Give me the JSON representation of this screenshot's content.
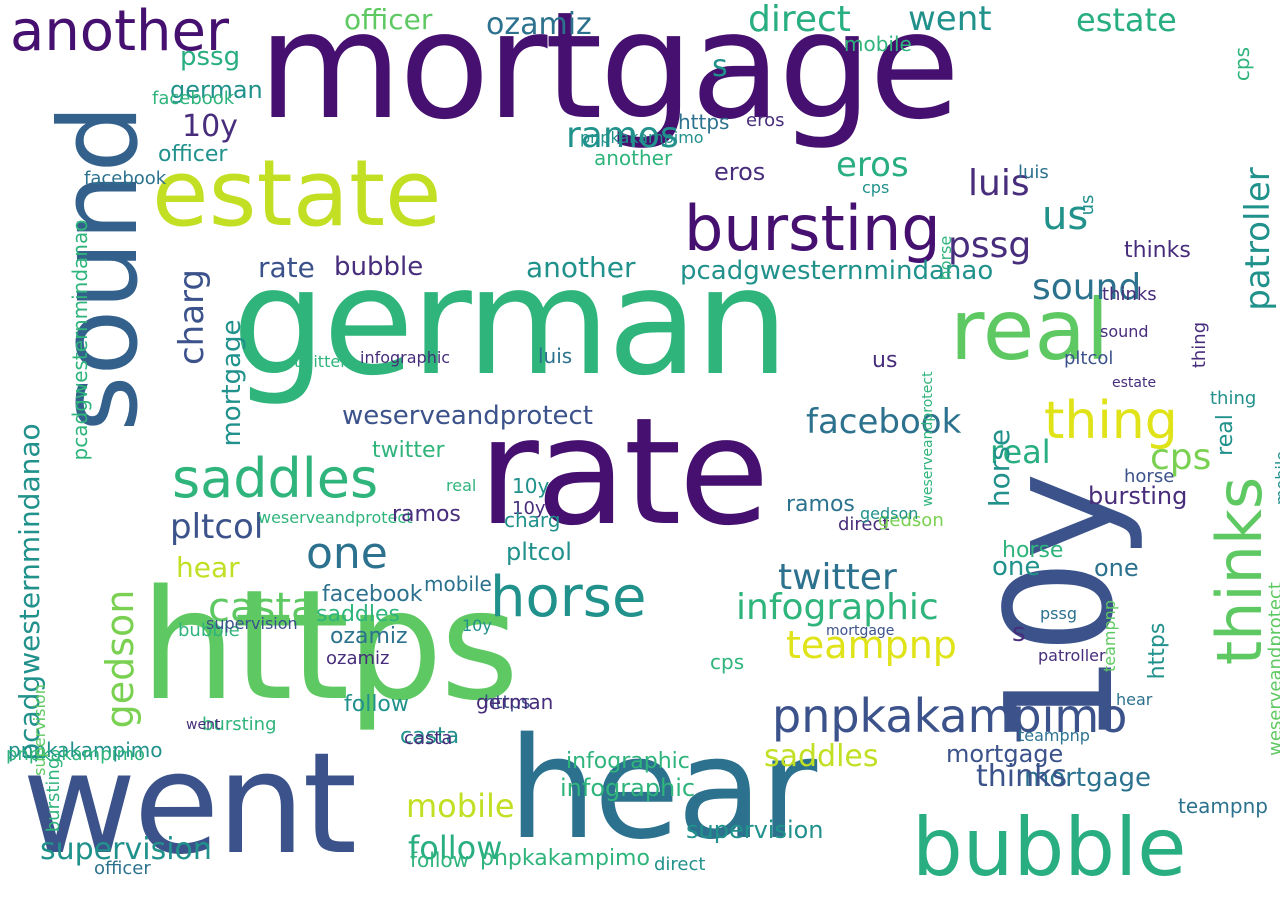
{
  "palette": {
    "deep_purple": "#45106f",
    "indigo": "#472d7b",
    "slate_blue": "#3b528b",
    "steel_blue": "#33618c",
    "teal_blue": "#2c728e",
    "teal": "#21918c",
    "green_teal": "#28ae80",
    "sea_green": "#2fb47c",
    "green": "#5ec962",
    "lime_green": "#7ad151",
    "yellow_green": "#c2df23",
    "yellow": "#dfe318"
  },
  "words": [
    {
      "id": "mortgage-big",
      "text": "mortgage",
      "color": "#45106f",
      "orient": "h"
    },
    {
      "id": "german-big",
      "text": "german",
      "color": "#2fb47c",
      "orient": "h"
    },
    {
      "id": "rate-big",
      "text": "rate",
      "color": "#45106f",
      "orient": "h"
    },
    {
      "id": "https-big",
      "text": "https",
      "color": "#5ec962",
      "orient": "h"
    },
    {
      "id": "went-big",
      "text": "went",
      "color": "#3b528b",
      "orient": "h"
    },
    {
      "id": "hear-big",
      "text": "hear",
      "color": "#2c728e",
      "orient": "h"
    },
    {
      "id": "sound-big",
      "text": "sound",
      "color": "#33618c",
      "orient": "v"
    },
    {
      "id": "10y-big",
      "text": "10y",
      "color": "#3b528b",
      "orient": "v"
    },
    {
      "id": "estate-big",
      "text": "estate",
      "color": "#c2df23",
      "orient": "h"
    },
    {
      "id": "real-big",
      "text": "real",
      "color": "#5ec962",
      "orient": "h"
    },
    {
      "id": "bubble-big",
      "text": "bubble",
      "color": "#28ae80",
      "orient": "h"
    },
    {
      "id": "thinks-big",
      "text": "thinks",
      "color": "#5ec962",
      "orient": "v"
    },
    {
      "id": "bursting-big",
      "text": "bursting",
      "color": "#45106f",
      "orient": "h"
    },
    {
      "id": "another-big",
      "text": "another",
      "color": "#45106f",
      "orient": "h"
    },
    {
      "id": "saddles-big",
      "text": "saddles",
      "color": "#2fb47c",
      "orient": "h"
    },
    {
      "id": "horse-big",
      "text": "horse",
      "color": "#21918c",
      "orient": "h"
    },
    {
      "id": "pnpkakampimo-big",
      "text": "pnpkakampimo",
      "color": "#3b528b",
      "orient": "h"
    },
    {
      "id": "thing-big",
      "text": "thing",
      "color": "#dfe318",
      "orient": "h"
    },
    {
      "id": "facebook-big",
      "text": "facebook",
      "color": "#2c728e",
      "orient": "h"
    },
    {
      "id": "infographic-big",
      "text": "infographic",
      "color": "#2fb47c",
      "orient": "h"
    },
    {
      "id": "twitter-big",
      "text": "twitter",
      "color": "#2c728e",
      "orient": "h"
    },
    {
      "id": "weserveandprotect-big",
      "text": "weserveandprotect",
      "color": "#3b528b",
      "orient": "h"
    },
    {
      "id": "pcadgwesternmindanao-big",
      "text": "pcadgwesternmindanao",
      "color": "#21918c",
      "orient": "v"
    },
    {
      "id": "casta-big",
      "text": "casta",
      "color": "#5ec962",
      "orient": "h"
    },
    {
      "id": "one-big",
      "text": "one",
      "color": "#2c728e",
      "orient": "h"
    },
    {
      "id": "ozamiz-big",
      "text": "ozamiz",
      "color": "#2c728e",
      "orient": "h"
    },
    {
      "id": "officer-big",
      "text": "officer",
      "color": "#5ec962",
      "orient": "h"
    },
    {
      "id": "direct-big",
      "text": "direct",
      "color": "#28ae80",
      "orient": "h"
    },
    {
      "id": "went-2",
      "text": "went",
      "color": "#21918c",
      "orient": "h"
    },
    {
      "id": "estate-2",
      "text": "estate",
      "color": "#28ae80",
      "orient": "h"
    },
    {
      "id": "eros-big",
      "text": "eros",
      "color": "#28ae80",
      "orient": "h"
    },
    {
      "id": "luis-big",
      "text": "luis",
      "color": "#472d7b",
      "orient": "h"
    },
    {
      "id": "pssg-big",
      "text": "pssg",
      "color": "#472d7b",
      "orient": "h"
    },
    {
      "id": "ramos-big",
      "text": "ramos",
      "color": "#21918c",
      "orient": "h"
    },
    {
      "id": "patroller-big",
      "text": "patroller",
      "color": "#21918c",
      "orient": "v"
    },
    {
      "id": "us-big",
      "text": "us",
      "color": "#21918c",
      "orient": "h"
    },
    {
      "id": "teampnp-big",
      "text": "teampnp",
      "color": "#dfe318",
      "orient": "h"
    },
    {
      "id": "supervision-big",
      "text": "supervision",
      "color": "#21918c",
      "orient": "h"
    },
    {
      "id": "follow-big",
      "text": "follow",
      "color": "#28ae80",
      "orient": "h"
    },
    {
      "id": "mobile-big",
      "text": "mobile",
      "color": "#c2df23",
      "orient": "h"
    },
    {
      "id": "cps-big",
      "text": "cps",
      "color": "#7ad151",
      "orient": "h"
    },
    {
      "id": "gedson-big",
      "text": "gedson",
      "color": "#7ad151",
      "orient": "v"
    },
    {
      "id": "pltcol-big",
      "text": "pltcol",
      "color": "#3b528b",
      "orient": "h"
    },
    {
      "id": "charg-big",
      "text": "charg",
      "color": "#3b528b",
      "orient": "v"
    },
    {
      "id": "bubble-2",
      "text": "bubble",
      "color": "#472d7b",
      "orient": "h"
    },
    {
      "id": "rate-2",
      "text": "rate",
      "color": "#3b528b",
      "orient": "h"
    },
    {
      "id": "another-2",
      "text": "another",
      "color": "#21918c",
      "orient": "h"
    },
    {
      "id": "pcadgwesternmindanao-2",
      "text": "pcadgwesternmindanao",
      "color": "#21918c",
      "orient": "h"
    },
    {
      "id": "sound-2",
      "text": "sound",
      "color": "#2c728e",
      "orient": "h"
    },
    {
      "id": "thinks-2",
      "text": "thinks",
      "color": "#472d7b",
      "orient": "h"
    },
    {
      "id": "mortgage-2",
      "text": "mortgage",
      "color": "#2c728e",
      "orient": "h"
    },
    {
      "id": "mortgage-3",
      "text": "mortgage",
      "color": "#21918c",
      "orient": "v"
    },
    {
      "id": "pnpkakampimo-2",
      "text": "pnpkakampimo",
      "color": "#21918c",
      "orient": "h"
    },
    {
      "id": "ramos-2",
      "text": "ramos",
      "color": "#2c728e",
      "orient": "h"
    },
    {
      "id": "officer-2",
      "text": "officer",
      "color": "#21918c",
      "orient": "h"
    },
    {
      "id": "10y-2",
      "text": "10y",
      "color": "#472d7b",
      "orient": "h"
    },
    {
      "id": "german-2",
      "text": "german",
      "color": "#21918c",
      "orient": "h"
    },
    {
      "id": "pssg-2",
      "text": "pssg",
      "color": "#28ae80",
      "orient": "h"
    },
    {
      "id": "eros-2",
      "text": "eros",
      "color": "#472d7b",
      "orient": "h"
    },
    {
      "id": "infographic-2",
      "text": "infographic",
      "color": "#2fb47c",
      "orient": "h"
    },
    {
      "id": "bursting-2",
      "text": "bursting",
      "color": "#472d7b",
      "orient": "h"
    },
    {
      "id": "real-2",
      "text": "real",
      "color": "#28ae80",
      "orient": "h"
    },
    {
      "id": "twitter-2",
      "text": "twitter",
      "color": "#2fb47c",
      "orient": "h"
    },
    {
      "id": "pltcol-2",
      "text": "pltcol",
      "color": "#21918c",
      "orient": "h"
    },
    {
      "id": "hear-2",
      "text": "hear",
      "color": "#c2df23",
      "orient": "h"
    },
    {
      "id": "casta-2",
      "text": "casta",
      "color": "#21918c",
      "orient": "h"
    },
    {
      "id": "mobile-2",
      "text": "mobile",
      "color": "#2c728e",
      "orient": "h"
    },
    {
      "id": "10y-3",
      "text": "10y",
      "color": "#21918c",
      "orient": "h"
    },
    {
      "id": "saddles-2",
      "text": "saddles",
      "color": "#c2df23",
      "orient": "h"
    },
    {
      "id": "infographic-3",
      "text": "infographic",
      "color": "#2fb47c",
      "orient": "h"
    },
    {
      "id": "thinks-3",
      "text": "thinks",
      "color": "#3b528b",
      "orient": "h"
    },
    {
      "id": "supervision-2",
      "text": "supervision",
      "color": "#21918c",
      "orient": "h"
    },
    {
      "id": "follow-2",
      "text": "follow",
      "color": "#2fb47c",
      "orient": "h"
    },
    {
      "id": "pnpkakampimo-3",
      "text": "pnpkakampimo",
      "color": "#2fb47c",
      "orient": "h"
    },
    {
      "id": "mortgage-4",
      "text": "mortgage",
      "color": "#3b528b",
      "orient": "h"
    },
    {
      "id": "teampnp-2",
      "text": "teampnp",
      "color": "#2c728e",
      "orient": "h"
    },
    {
      "id": "one-2",
      "text": "one",
      "color": "#21918c",
      "orient": "h"
    },
    {
      "id": "direct-2",
      "text": "direct",
      "color": "#472d7b",
      "orient": "h"
    },
    {
      "id": "ozamiz-2",
      "text": "ozamiz",
      "color": "#2c728e",
      "orient": "h"
    },
    {
      "id": "https-2",
      "text": "https",
      "color": "#21918c",
      "orient": "v"
    },
    {
      "id": "pnpkakampimo-4",
      "text": "pnpkakampimo",
      "color": "#2fb47c",
      "orient": "h"
    },
    {
      "id": "gedson-2",
      "text": "gedson",
      "color": "#7ad151",
      "orient": "h"
    },
    {
      "id": "horse-2",
      "text": "horse",
      "color": "#21918c",
      "orient": "v"
    },
    {
      "id": "weserveandprotect-2",
      "text": "weserveandprotect",
      "color": "#2fb47c",
      "orient": "h"
    },
    {
      "id": "bursting-3",
      "text": "bursting",
      "color": "#2fb47c",
      "orient": "h"
    },
    {
      "id": "cps-2",
      "text": "cps",
      "color": "#2fb47c",
      "orient": "h"
    },
    {
      "id": "luis-2",
      "text": "luis",
      "color": "#2c728e",
      "orient": "h"
    },
    {
      "id": "one-3",
      "text": "one",
      "color": "#2c728e",
      "orient": "h"
    },
    {
      "id": "facebook-2",
      "text": "facebook",
      "color": "#2c728e",
      "orient": "h"
    },
    {
      "id": "10y-4",
      "text": "10y",
      "color": "#472d7b",
      "orient": "h"
    },
    {
      "id": "https-3",
      "text": "https",
      "color": "#3b528b",
      "orient": "h"
    },
    {
      "id": "pnpkakampimo-5",
      "text": "pnpkakampimo",
      "color": "#21918c",
      "orient": "h"
    },
    {
      "id": "pcadgwesternmindanao-3",
      "text": "pcadgwesternmindanao",
      "color": "#2fb47c",
      "orient": "v"
    },
    {
      "id": "weserveandprotect-3",
      "text": "weserveandprotect",
      "color": "#5ec962",
      "orient": "v"
    },
    {
      "id": "facebook-3",
      "text": "facebook",
      "color": "#2c728e",
      "orient": "h"
    },
    {
      "id": "facebook-4",
      "text": "facebook",
      "color": "#2fb47c",
      "orient": "h"
    },
    {
      "id": "german-3",
      "text": "german",
      "color": "#472d7b",
      "orient": "h"
    },
    {
      "id": "ozamiz-3",
      "text": "ozamiz",
      "color": "#472d7b",
      "orient": "h"
    },
    {
      "id": "mortgage-5",
      "text": "mortgage",
      "color": "#3b528b",
      "orient": "h"
    },
    {
      "id": "s-1",
      "text": "s",
      "color": "#21918c",
      "orient": "h"
    },
    {
      "id": "s-2",
      "text": "s",
      "color": "#472d7b",
      "orient": "h"
    },
    {
      "id": "mobile-3",
      "text": "mobile",
      "color": "#2fb47c",
      "orient": "h"
    },
    {
      "id": "follow-3",
      "text": "follow",
      "color": "#21918c",
      "orient": "h"
    },
    {
      "id": "officer-3",
      "text": "officer",
      "color": "#2c728e",
      "orient": "h"
    },
    {
      "id": "direct-3",
      "text": "direct",
      "color": "#21918c",
      "orient": "h"
    },
    {
      "id": "https-4",
      "text": "https",
      "color": "#2c728e",
      "orient": "h"
    },
    {
      "id": "horse-3",
      "text": "horse",
      "color": "#2fb47c",
      "orient": "h"
    },
    {
      "id": "horse-4",
      "text": "horse",
      "color": "#3b528b",
      "orient": "h"
    },
    {
      "id": "saddles-3",
      "text": "saddles",
      "color": "#2fb47c",
      "orient": "h"
    },
    {
      "id": "ramos-3",
      "text": "ramos",
      "color": "#472d7b",
      "orient": "h"
    },
    {
      "id": "thing-2",
      "text": "thing",
      "color": "#21918c",
      "orient": "h"
    },
    {
      "id": "casta-3",
      "text": "casta",
      "color": "#472d7b",
      "orient": "h"
    },
    {
      "id": "eros-3",
      "text": "eros",
      "color": "#472d7b",
      "orient": "h"
    },
    {
      "id": "luis-3",
      "text": "luis",
      "color": "#2c728e",
      "orient": "h"
    },
    {
      "id": "us-2",
      "text": "us",
      "color": "#472d7b",
      "orient": "h"
    },
    {
      "id": "10y-5",
      "text": "10y",
      "color": "#21918c",
      "orient": "h"
    },
    {
      "id": "bubble-3",
      "text": "bubble",
      "color": "#2fb47c",
      "orient": "h"
    },
    {
      "id": "gedson-3",
      "text": "gedson",
      "color": "#21918c",
      "orient": "h"
    },
    {
      "id": "went-3",
      "text": "went",
      "color": "#472d7b",
      "orient": "h"
    },
    {
      "id": "real-3",
      "text": "real",
      "color": "#2fb47c",
      "orient": "h"
    },
    {
      "id": "estate-3",
      "text": "estate",
      "color": "#472d7b",
      "orient": "h"
    },
    {
      "id": "infographic-4",
      "text": "infographic",
      "color": "#472d7b",
      "orient": "h"
    },
    {
      "id": "charg-2",
      "text": "charg",
      "color": "#21918c",
      "orient": "h"
    },
    {
      "id": "twitter-3",
      "text": "twitter",
      "color": "#2fb47c",
      "orient": "h"
    },
    {
      "id": "supervision-3",
      "text": "supervision",
      "color": "#3b528b",
      "orient": "h"
    },
    {
      "id": "cps-3",
      "text": "cps",
      "color": "#21918c",
      "orient": "h"
    },
    {
      "id": "teampnp-3",
      "text": "teampnp",
      "color": "#2c728e",
      "orient": "h"
    },
    {
      "id": "patroller-2",
      "text": "patroller",
      "color": "#472d7b",
      "orient": "h"
    },
    {
      "id": "another-3",
      "text": "another",
      "color": "#2fb47c",
      "orient": "h"
    },
    {
      "id": "pssg-3",
      "text": "pssg",
      "color": "#2c728e",
      "orient": "h"
    },
    {
      "id": "pltcol-3",
      "text": "pltcol",
      "color": "#3b528b",
      "orient": "h"
    },
    {
      "id": "thinks-4",
      "text": "thinks",
      "color": "#472d7b",
      "orient": "h"
    },
    {
      "id": "sound-3",
      "text": "sound",
      "color": "#472d7b",
      "orient": "h"
    },
    {
      "id": "hear-3",
      "text": "hear",
      "color": "#2c728e",
      "orient": "h"
    },
    {
      "id": "bursting-4",
      "text": "bursting",
      "color": "#2fb47c",
      "orient": "v"
    },
    {
      "id": "thing-3",
      "text": "thing",
      "color": "#472d7b",
      "orient": "v"
    },
    {
      "id": "real-4",
      "text": "real",
      "color": "#21918c",
      "orient": "v"
    },
    {
      "id": "us-3",
      "text": "us",
      "color": "#21918c",
      "orient": "v"
    },
    {
      "id": "supervision-4",
      "text": "supervision",
      "color": "#5ec962",
      "orient": "v"
    },
    {
      "id": "teampnp-4",
      "text": "teampnp",
      "color": "#5ec962",
      "orient": "v"
    },
    {
      "id": "mobile-4",
      "text": "mobile",
      "color": "#21918c",
      "orient": "v"
    },
    {
      "id": "cps-4",
      "text": "cps",
      "color": "#2fb47c",
      "orient": "v"
    },
    {
      "id": "weserveandprotect-4",
      "text": "weserveandprotect",
      "color": "#2fb47c",
      "orient": "v"
    },
    {
      "id": "horse-5",
      "text": "horse",
      "color": "#2fb47c",
      "orient": "v"
    }
  ]
}
